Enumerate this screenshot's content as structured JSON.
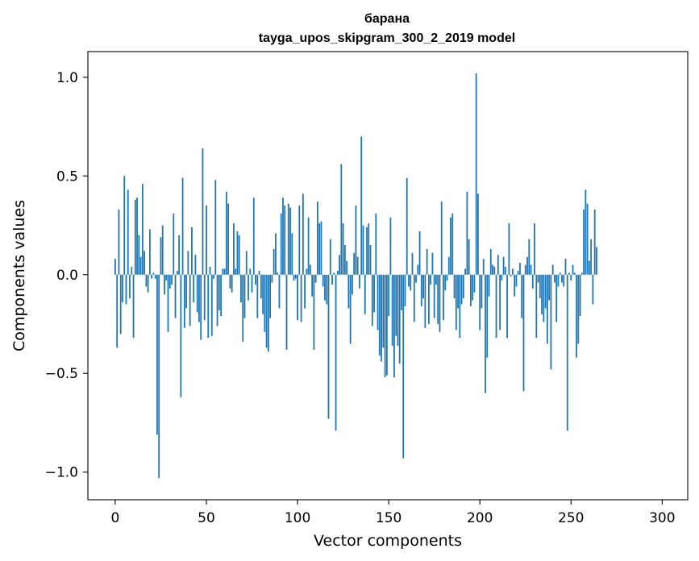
{
  "chart_data": {
    "type": "bar",
    "title_line1": "барана",
    "title_line2": "tayga_upos_skipgram_300_2_2019 model",
    "xlabel": "Vector components",
    "ylabel": "Components values",
    "xlim": [
      -15,
      314
    ],
    "ylim": [
      -1.14,
      1.13
    ],
    "xticks": [
      0,
      50,
      100,
      150,
      200,
      250,
      300
    ],
    "yticks": [
      -1.0,
      -0.5,
      0.0,
      0.5,
      1.0
    ],
    "xtick_labels": [
      "0",
      "50",
      "100",
      "150",
      "200",
      "250",
      "300"
    ],
    "ytick_labels": [
      "−1.0",
      "−0.5",
      "0.0",
      "0.5",
      "1.0"
    ],
    "bar_color": "#1f77b4",
    "values": [
      0.08,
      -0.37,
      0.33,
      -0.3,
      -0.14,
      0.5,
      -0.15,
      0.43,
      -0.12,
      0.04,
      -0.32,
      0.38,
      0.39,
      0.2,
      0.09,
      0.46,
      0.12,
      -0.06,
      -0.09,
      0.23,
      -0.02,
      0.01,
      -0.02,
      -0.81,
      -1.03,
      0.19,
      0.25,
      -0.1,
      -0.03,
      -0.29,
      -0.07,
      -0.05,
      0.31,
      -0.22,
      0.02,
      0.2,
      -0.62,
      0.49,
      -0.27,
      -0.17,
      0.12,
      -0.26,
      0.24,
      -0.14,
      0.1,
      -0.19,
      -0.24,
      -0.33,
      0.64,
      -0.23,
      0.35,
      -0.32,
      0.04,
      -0.31,
      -0.02,
      0.48,
      -0.26,
      -0.18,
      -0.21,
      0.03,
      0.03,
      0.42,
      0.36,
      -0.07,
      -0.09,
      0.26,
      0.03,
      0.22,
      0.2,
      -0.14,
      -0.34,
      -0.22,
      0.12,
      -0.13,
      0.03,
      -0.09,
      0.39,
      -0.05,
      -0.22,
      0.02,
      -0.12,
      -0.2,
      -0.29,
      -0.37,
      -0.39,
      -0.22,
      -0.04,
      0.13,
      0.21,
      0.01,
      -0.17,
      0.31,
      0.39,
      0.35,
      -0.38,
      0.36,
      0.34,
      0.21,
      -0.03,
      -0.02,
      -0.23,
      0.35,
      -0.24,
      0.41,
      -0.17,
      0.03,
      0.29,
      0.05,
      -0.11,
      -0.38,
      -0.04,
      0.37,
      0.26,
      0.27,
      -0.06,
      -0.13,
      -0.15,
      -0.73,
      0.18,
      -0.05,
      0.01,
      -0.79,
      0.02,
      0.1,
      0.56,
      0.26,
      0.15,
      0.07,
      -0.17,
      -0.35,
      -0.1,
      0.11,
      0.35,
      0.09,
      -0.07,
      0.7,
      0.25,
      -0.2,
      0.24,
      0.26,
      0.15,
      -0.26,
      -0.19,
      0.31,
      -0.28,
      -0.41,
      -0.44,
      -0.37,
      -0.52,
      -0.51,
      -0.21,
      0.29,
      -0.36,
      -0.52,
      -0.31,
      -0.36,
      -0.45,
      -0.18,
      -0.93,
      -0.16,
      0.49,
      -0.06,
      -0.08,
      0.11,
      -0.24,
      -0.04,
      0.05,
      0.22,
      -0.16,
      -0.12,
      -0.27,
      0.13,
      -0.25,
      -0.05,
      0.11,
      -0.22,
      -0.05,
      -0.25,
      -0.29,
      0.37,
      -0.23,
      -0.08,
      -0.03,
      0.09,
      0.29,
      0.31,
      -0.12,
      -0.28,
      -0.17,
      -0.32,
      -0.15,
      -0.12,
      0.03,
      0.42,
      0.18,
      -0.16,
      -0.13,
      -0.09,
      1.02,
      0.41,
      -0.28,
      -0.17,
      0.08,
      -0.6,
      -0.42,
      -0.11,
      0.13,
      0.05,
      0.04,
      -0.32,
      0.1,
      -0.28,
      -0.03,
      0.09,
      0.04,
      -0.32,
      0.26,
      -0.01,
      0.03,
      -0.11,
      -0.06,
      0.02,
      0.06,
      -0.22,
      -0.59,
      0.05,
      0.09,
      0.18,
      0.05,
      -0.07,
      0.26,
      -0.32,
      -0.04,
      -0.12,
      -0.2,
      -0.24,
      -0.17,
      -0.35,
      -0.13,
      -0.48,
      0.05,
      -0.04,
      -0.24,
      -0.06,
      0.01,
      -0.04,
      -0.06,
      0.08,
      -0.79,
      0.01,
      -0.03,
      0.05,
      0.01,
      -0.42,
      -0.35,
      -0.21,
      0.01,
      0.33,
      0.43,
      0.36,
      0.07,
      0.18,
      -0.15,
      0.33,
      0.14
    ]
  }
}
